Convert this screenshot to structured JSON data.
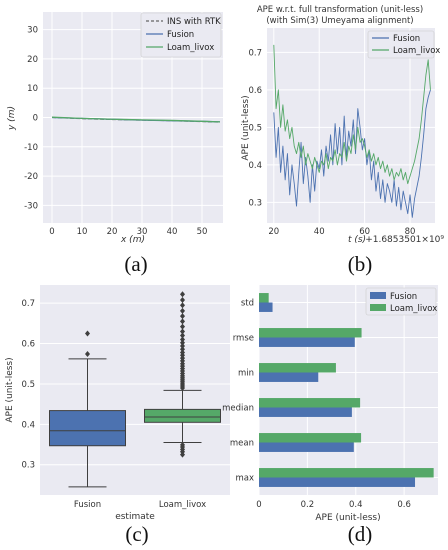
{
  "chart_data": [
    {
      "panel_label": "(a)",
      "type": "line",
      "xlabel": "x (m)",
      "ylabel": "y (m)",
      "xlim": [
        -3,
        57
      ],
      "ylim": [
        -36,
        36
      ],
      "xticks": [
        0,
        10,
        20,
        30,
        40,
        50
      ],
      "yticks": [
        30,
        20,
        10,
        0,
        -10,
        -20,
        -30
      ],
      "legend_position": "top-right",
      "series": [
        {
          "name": "INS with RTK",
          "color": "#666666",
          "dashed": true,
          "x": [
            0,
            10,
            20,
            30,
            40,
            50,
            56
          ],
          "y": [
            0,
            -0.4,
            -0.7,
            -0.9,
            -1.1,
            -1.4,
            -1.6
          ]
        },
        {
          "name": "Fusion",
          "color": "#4c72b0",
          "x": [
            0,
            10,
            20,
            30,
            40,
            50,
            56
          ],
          "y": [
            0,
            -0.3,
            -0.6,
            -0.9,
            -1.1,
            -1.3,
            -1.5
          ]
        },
        {
          "name": "Loam_livox",
          "color": "#55a868",
          "x": [
            0,
            10,
            20,
            30,
            40,
            50,
            56
          ],
          "y": [
            0.1,
            -0.3,
            -0.6,
            -0.8,
            -1.0,
            -1.3,
            -1.5
          ]
        }
      ]
    },
    {
      "panel_label": "(b)",
      "type": "line",
      "title": "APE w.r.t. full transformation (unit-less)",
      "subtitle": "(with Sim(3) Umeyama alignment)",
      "xlabel": "t (s)",
      "offset_text": "+1.6853501×10⁹",
      "ylabel": "APE (unit-less)",
      "xlim": [
        17,
        91
      ],
      "ylim": [
        0.245,
        0.765
      ],
      "xticks": [
        20,
        40,
        60,
        80
      ],
      "yticks": [
        0.7,
        0.6,
        0.5,
        0.4,
        0.3
      ],
      "legend_position": "top-right",
      "series": [
        {
          "name": "Fusion",
          "color": "#4c72b0",
          "x": [
            20,
            21,
            22,
            23,
            24,
            25,
            26,
            27,
            28,
            29,
            30,
            31,
            32,
            33,
            34,
            35,
            36,
            37,
            38,
            39,
            40,
            41,
            42,
            43,
            44,
            45,
            46,
            47,
            48,
            49,
            50,
            51,
            52,
            53,
            54,
            55,
            56,
            57,
            58,
            59,
            60,
            61,
            62,
            63,
            64,
            65,
            66,
            67,
            68,
            69,
            70,
            71,
            72,
            73,
            74,
            75,
            76,
            77,
            78,
            79,
            80,
            81,
            82,
            83,
            84,
            85,
            86,
            87,
            88,
            89
          ],
          "y": [
            0.54,
            0.42,
            0.5,
            0.38,
            0.45,
            0.36,
            0.43,
            0.32,
            0.4,
            0.35,
            0.29,
            0.38,
            0.46,
            0.35,
            0.42,
            0.37,
            0.3,
            0.4,
            0.33,
            0.41,
            0.39,
            0.44,
            0.37,
            0.45,
            0.41,
            0.48,
            0.4,
            0.51,
            0.43,
            0.5,
            0.4,
            0.53,
            0.42,
            0.49,
            0.45,
            0.52,
            0.43,
            0.55,
            0.5,
            0.44,
            0.47,
            0.4,
            0.44,
            0.36,
            0.41,
            0.33,
            0.38,
            0.31,
            0.36,
            0.3,
            0.35,
            0.33,
            0.3,
            0.36,
            0.29,
            0.34,
            0.28,
            0.33,
            0.3,
            0.27,
            0.32,
            0.26,
            0.31,
            0.34,
            0.37,
            0.42,
            0.48,
            0.55,
            0.58,
            0.6
          ]
        },
        {
          "name": "Loam_livox",
          "color": "#55a868",
          "x": [
            20,
            21,
            22,
            23,
            24,
            25,
            26,
            27,
            28,
            29,
            30,
            31,
            32,
            33,
            34,
            35,
            36,
            37,
            38,
            39,
            40,
            41,
            42,
            43,
            44,
            45,
            46,
            47,
            48,
            49,
            50,
            51,
            52,
            53,
            54,
            55,
            56,
            57,
            58,
            59,
            60,
            61,
            62,
            63,
            64,
            65,
            66,
            67,
            68,
            69,
            70,
            71,
            72,
            73,
            74,
            75,
            76,
            77,
            78,
            79,
            80,
            81,
            82,
            83,
            84,
            85,
            86,
            87,
            88,
            89
          ],
          "y": [
            0.72,
            0.55,
            0.6,
            0.5,
            0.56,
            0.49,
            0.52,
            0.47,
            0.5,
            0.45,
            0.43,
            0.46,
            0.42,
            0.45,
            0.4,
            0.43,
            0.41,
            0.39,
            0.42,
            0.4,
            0.38,
            0.41,
            0.4,
            0.43,
            0.39,
            0.42,
            0.41,
            0.44,
            0.4,
            0.43,
            0.42,
            0.46,
            0.41,
            0.45,
            0.43,
            0.48,
            0.44,
            0.5,
            0.46,
            0.47,
            0.45,
            0.42,
            0.44,
            0.41,
            0.43,
            0.4,
            0.42,
            0.39,
            0.41,
            0.38,
            0.4,
            0.37,
            0.39,
            0.36,
            0.38,
            0.37,
            0.39,
            0.36,
            0.38,
            0.35,
            0.37,
            0.39,
            0.41,
            0.44,
            0.47,
            0.52,
            0.58,
            0.64,
            0.68,
            0.6
          ]
        }
      ]
    },
    {
      "panel_label": "(c)",
      "type": "box",
      "xlabel": "estimate",
      "ylabel": "APE (unit-less)",
      "ylim": [
        0.225,
        0.745
      ],
      "yticks": [
        0.7,
        0.6,
        0.5,
        0.4,
        0.3
      ],
      "categories": [
        "Fusion",
        "Loam_livox"
      ],
      "boxes": [
        {
          "name": "Fusion",
          "color": "#4c72b0",
          "whislo": 0.245,
          "q1": 0.347,
          "med": 0.384,
          "q3": 0.434,
          "whishi": 0.562,
          "fliers": [
            0.574,
            0.625
          ]
        },
        {
          "name": "Loam_livox",
          "color": "#55a868",
          "whislo": 0.355,
          "q1": 0.405,
          "med": 0.418,
          "q3": 0.437,
          "whishi": 0.484,
          "fliers": [
            0.325,
            0.332,
            0.338,
            0.344,
            0.349,
            0.49,
            0.495,
            0.5,
            0.505,
            0.51,
            0.515,
            0.52,
            0.526,
            0.532,
            0.538,
            0.544,
            0.55,
            0.557,
            0.564,
            0.571,
            0.578,
            0.586,
            0.594,
            0.602,
            0.61,
            0.62,
            0.63,
            0.642,
            0.655,
            0.668,
            0.681,
            0.695,
            0.708,
            0.722
          ]
        }
      ]
    },
    {
      "panel_label": "(d)",
      "type": "bar",
      "orientation": "horizontal",
      "xlabel": "APE (unit-less)",
      "xlim": [
        0,
        0.74
      ],
      "xticks": [
        0.0,
        0.2,
        0.4,
        0.6
      ],
      "categories": [
        "std",
        "rmse",
        "min",
        "median",
        "mean",
        "max"
      ],
      "legend_position": "top-right",
      "series": [
        {
          "name": "Fusion",
          "color": "#4c72b0",
          "values": [
            0.056,
            0.396,
            0.245,
            0.384,
            0.392,
            0.645
          ]
        },
        {
          "name": "Loam_livox",
          "color": "#55a868",
          "values": [
            0.04,
            0.424,
            0.318,
            0.418,
            0.422,
            0.722
          ]
        }
      ]
    }
  ]
}
